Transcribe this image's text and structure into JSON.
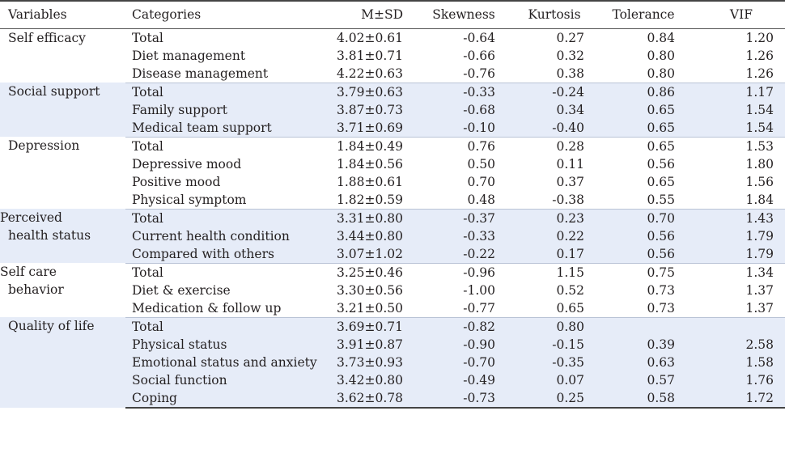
{
  "headers": [
    "Variables",
    "Categories",
    "M±SD",
    "Skewness",
    "Kurtosis",
    "Tolerance",
    "VIF"
  ],
  "groups": [
    {
      "variable": "Self efficacy",
      "shaded": false,
      "rows": [
        {
          "category": "Total",
          "msd": "4.02±0.61",
          "skew": "-0.64",
          "kurt": "0.27",
          "tol": "0.84",
          "vif": "1.20"
        },
        {
          "category": "Diet management",
          "msd": "3.81±0.71",
          "skew": "-0.66",
          "kurt": "0.32",
          "tol": "0.80",
          "vif": "1.26"
        },
        {
          "category": "Disease management",
          "msd": "4.22±0.63",
          "skew": "-0.76",
          "kurt": "0.38",
          "tol": "0.80",
          "vif": "1.26"
        }
      ]
    },
    {
      "variable": "Social support",
      "shaded": true,
      "rows": [
        {
          "category": "Total",
          "msd": "3.79±0.63",
          "skew": "-0.33",
          "kurt": "-0.24",
          "tol": "0.86",
          "vif": "1.17"
        },
        {
          "category": "Family support",
          "msd": "3.87±0.73",
          "skew": "-0.68",
          "kurt": "0.34",
          "tol": "0.65",
          "vif": "1.54"
        },
        {
          "category": "Medical team support",
          "msd": "3.71±0.69",
          "skew": "-0.10",
          "kurt": "-0.40",
          "tol": "0.65",
          "vif": "1.54"
        }
      ]
    },
    {
      "variable": "Depression",
      "shaded": false,
      "rows": [
        {
          "category": "Total",
          "msd": "1.84±0.49",
          "skew": "0.76",
          "kurt": "0.28",
          "tol": "0.65",
          "vif": "1.53"
        },
        {
          "category": "Depressive mood",
          "msd": "1.84±0.56",
          "skew": "0.50",
          "kurt": "0.11",
          "tol": "0.56",
          "vif": "1.80"
        },
        {
          "category": "Positive mood",
          "msd": "1.88±0.61",
          "skew": "0.70",
          "kurt": "0.37",
          "tol": "0.65",
          "vif": "1.56"
        },
        {
          "category": "Physical symptom",
          "msd": "1.82±0.59",
          "skew": "0.48",
          "kurt": "-0.38",
          "tol": "0.55",
          "vif": "1.84"
        }
      ]
    },
    {
      "variable": "Perceived health status",
      "shaded": true,
      "rows": [
        {
          "category": "Total",
          "msd": "3.31±0.80",
          "skew": "-0.37",
          "kurt": "0.23",
          "tol": "0.70",
          "vif": "1.43"
        },
        {
          "category": "Current health condition",
          "msd": "3.44±0.80",
          "skew": "-0.33",
          "kurt": "0.22",
          "tol": "0.56",
          "vif": "1.79"
        },
        {
          "category": "Compared with others",
          "msd": "3.07±1.02",
          "skew": "-0.22",
          "kurt": "0.17",
          "tol": "0.56",
          "vif": "1.79"
        }
      ]
    },
    {
      "variable": "Self care behavior",
      "shaded": false,
      "rows": [
        {
          "category": "Total",
          "msd": "3.25±0.46",
          "skew": "-0.96",
          "kurt": "1.15",
          "tol": "0.75",
          "vif": "1.34"
        },
        {
          "category": "Diet & exercise",
          "msd": "3.30±0.56",
          "skew": "-1.00",
          "kurt": "0.52",
          "tol": "0.73",
          "vif": "1.37"
        },
        {
          "category": "Medication & follow up",
          "msd": "3.21±0.50",
          "skew": "-0.77",
          "kurt": "0.65",
          "tol": "0.73",
          "vif": "1.37"
        }
      ]
    },
    {
      "variable": "Quality of life",
      "shaded": true,
      "rows": [
        {
          "category": "Total",
          "msd": "3.69±0.71",
          "skew": "-0.82",
          "kurt": "0.80",
          "tol": "",
          "vif": ""
        },
        {
          "category": "Physical status",
          "msd": "3.91±0.87",
          "skew": "-0.90",
          "kurt": "-0.15",
          "tol": "0.39",
          "vif": "2.58"
        },
        {
          "category": "Emotional status and anxiety",
          "msd": "3.73±0.93",
          "skew": "-0.70",
          "kurt": "-0.35",
          "tol": "0.63",
          "vif": "1.58"
        },
        {
          "category": "Social function",
          "msd": "3.42±0.80",
          "skew": "-0.49",
          "kurt": "0.07",
          "tol": "0.57",
          "vif": "1.76"
        },
        {
          "category": "Coping",
          "msd": "3.62±0.78",
          "skew": "-0.73",
          "kurt": "0.25",
          "tol": "0.58",
          "vif": "1.72"
        }
      ]
    }
  ]
}
